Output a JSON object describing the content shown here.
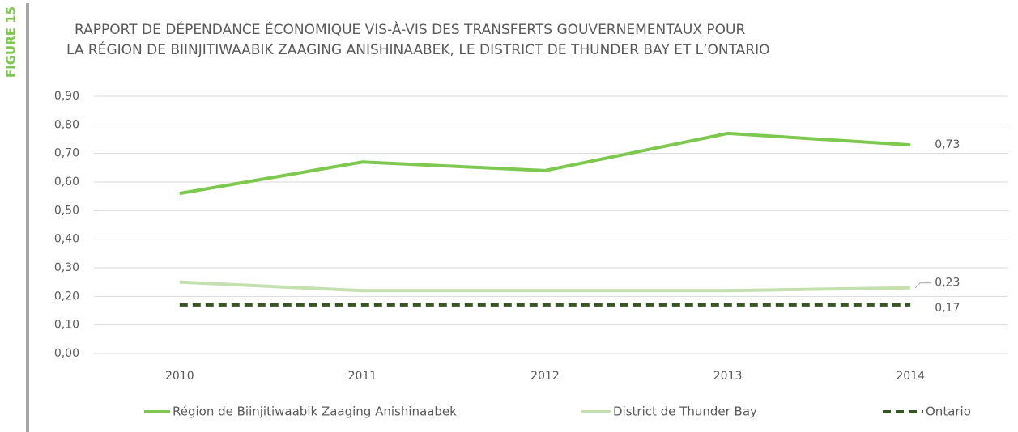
{
  "figure_label": "FIGURE 15",
  "chart_data": {
    "type": "line",
    "title": [
      "RAPPORT DE DÉPENDANCE ÉCONOMIQUE VIS-À-VIS DES TRANSFERTS GOUVERNEMENTAUX POUR",
      "LA RÉGION DE BIINJITIWAABIK ZAAGING ANISHINAABEK, LE DISTRICT DE THUNDER BAY ET L’ONTARIO"
    ],
    "categories": [
      "2010",
      "2011",
      "2012",
      "2013",
      "2014"
    ],
    "series": [
      {
        "name": "Région de Biinjitiwaabik Zaaging Anishinaabek",
        "color": "#7dc84e",
        "dashed": false,
        "values": [
          0.56,
          0.67,
          0.64,
          0.77,
          0.73
        ],
        "value_labels": [
          null,
          null,
          null,
          null,
          "0,73"
        ]
      },
      {
        "name": "District de Thunder Bay",
        "color": "#c5e0b0",
        "dashed": false,
        "values": [
          0.25,
          0.22,
          0.22,
          0.22,
          0.23
        ],
        "value_labels": [
          null,
          null,
          null,
          null,
          "0,23"
        ]
      },
      {
        "name": "Ontario",
        "color": "#375623",
        "dashed": true,
        "values": [
          0.17,
          0.17,
          0.17,
          0.17,
          0.17
        ],
        "value_labels": [
          null,
          null,
          null,
          null,
          "0,17"
        ]
      }
    ],
    "ylim": [
      0,
      0.9
    ],
    "yticks": [
      {
        "value": 0,
        "label": "0,00"
      },
      {
        "value": 0.1,
        "label": "0,10"
      },
      {
        "value": 0.2,
        "label": "0,20"
      },
      {
        "value": 0.3,
        "label": "0,30"
      },
      {
        "value": 0.4,
        "label": "0,40"
      },
      {
        "value": 0.5,
        "label": "0,50"
      },
      {
        "value": 0.6,
        "label": "0,60"
      },
      {
        "value": 0.7,
        "label": "0,70"
      },
      {
        "value": 0.8,
        "label": "0,80"
      },
      {
        "value": 0.9,
        "label": "0,90"
      }
    ],
    "grid": true,
    "legend": "bottom"
  }
}
